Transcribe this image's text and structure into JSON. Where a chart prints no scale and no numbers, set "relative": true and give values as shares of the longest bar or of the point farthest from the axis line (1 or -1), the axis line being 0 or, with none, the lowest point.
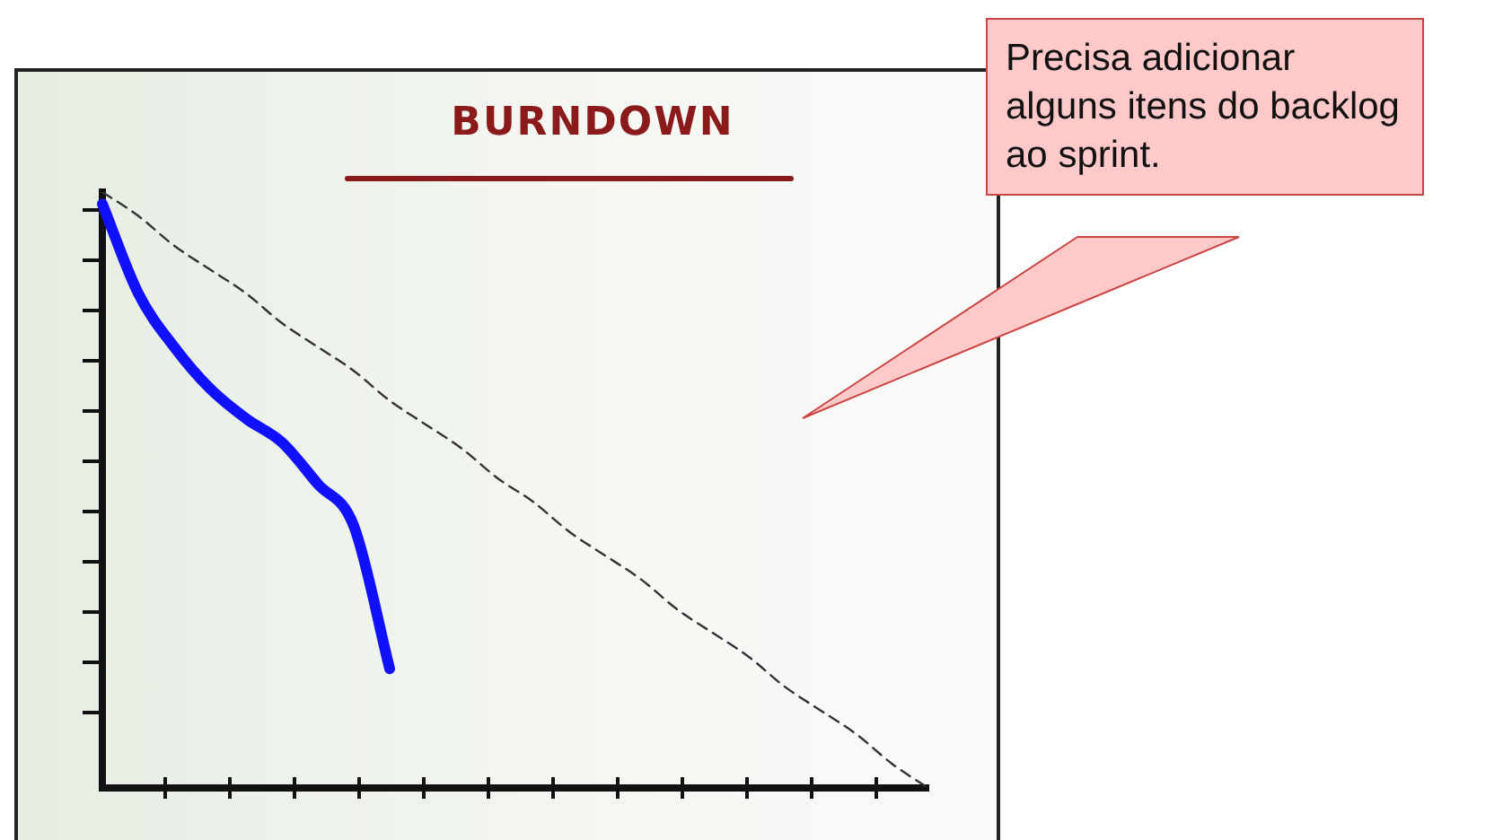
{
  "chart_data": {
    "type": "line",
    "title": "BURNDOWN",
    "relative": true,
    "marker": "none",
    "legend": false,
    "grid": false,
    "annotations": [
      "Precisa adicionar alguns itens do backlog ao sprint."
    ],
    "categories": [
      null,
      null,
      null,
      null,
      null,
      null,
      null,
      null,
      null,
      null,
      null,
      null,
      null,
      null,
      null,
      null,
      null,
      null,
      null,
      null,
      null,
      null,
      null,
      null
    ],
    "series": [
      {
        "color": "#333333",
        "line_style": "dashed",
        "values": [
          1,
          0.96,
          0.91,
          0.87,
          0.83,
          0.78,
          0.74,
          0.7,
          0.65,
          0.61,
          0.57,
          0.52,
          0.48,
          0.43,
          0.39,
          0.35,
          0.3,
          0.26,
          0.22,
          0.17,
          0.13,
          0.09,
          0.04,
          0
        ]
      },
      {
        "color": "#1010ff",
        "line_style": "solid",
        "values": [
          0.98,
          0.83,
          0.74,
          0.67,
          0.62,
          0.58,
          0.51,
          0.44,
          0.2,
          null,
          null,
          null,
          null,
          null,
          null,
          null,
          null,
          null,
          null,
          null,
          null,
          null,
          null,
          null
        ]
      }
    ]
  }
}
